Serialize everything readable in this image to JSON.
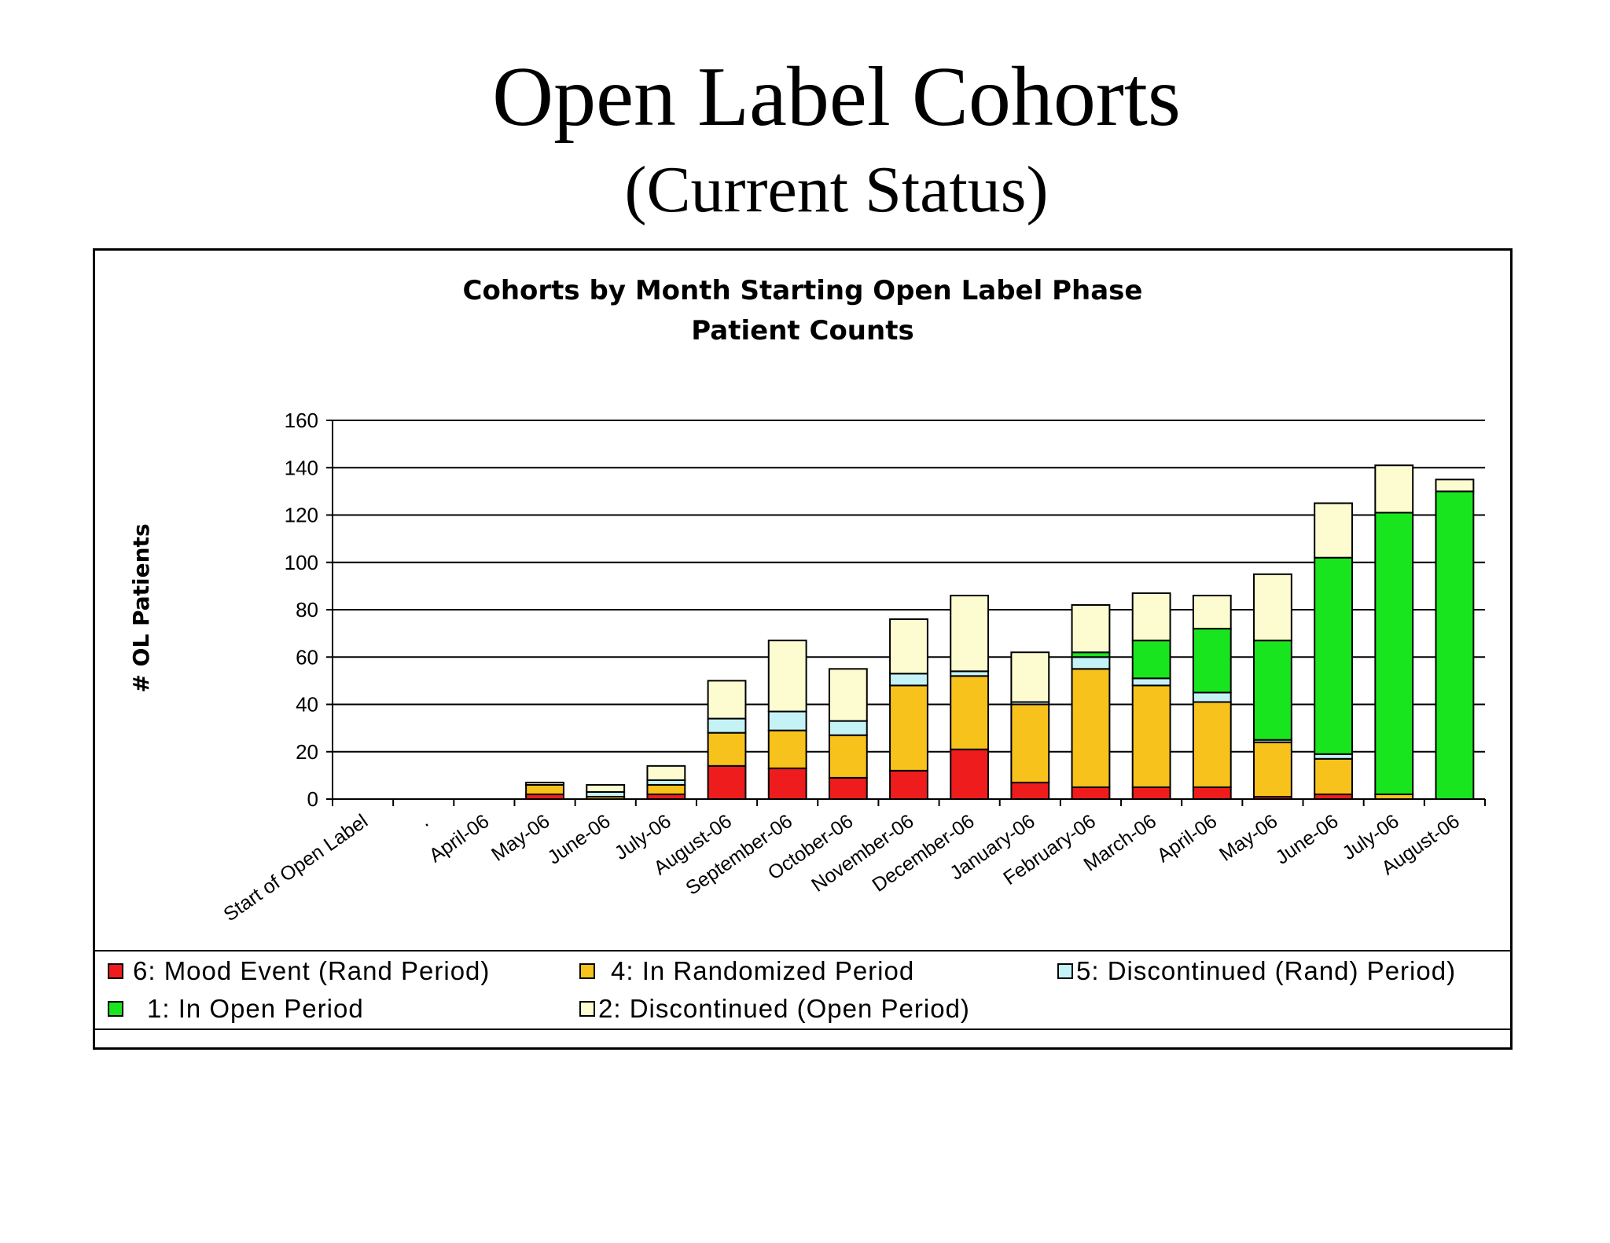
{
  "slide": {
    "title": "Open Label Cohorts",
    "subtitle": "(Current Status)"
  },
  "chart_data": {
    "type": "bar",
    "stacked": true,
    "title": "Cohorts by Month Starting Open Label Phase",
    "subtitle": "Patient Counts",
    "xlabel": "",
    "ylabel": "# OL Patients",
    "ylim": [
      0,
      160
    ],
    "yticks": [
      0,
      20,
      40,
      60,
      80,
      100,
      120,
      140,
      160
    ],
    "grid": true,
    "legend_position": "bottom",
    "categories": [
      "Start of Open Label",
      ".",
      "April-06",
      "May-06",
      "June-06",
      "July-06",
      "August-06",
      "September-06",
      "October-06",
      "November-06",
      "December-06",
      "January-06",
      "February-06",
      "March-06",
      "April-06",
      "May-06",
      "June-06",
      "July-06",
      "August-06"
    ],
    "series": [
      {
        "name": "6: Mood Event (Rand Period)",
        "color": "#ee1c1c",
        "values": [
          0,
          0,
          0,
          2,
          0,
          2,
          14,
          13,
          9,
          12,
          21,
          7,
          5,
          5,
          5,
          1,
          2,
          0,
          0
        ]
      },
      {
        "name": "4: In Randomized Period",
        "color": "#f7c21b",
        "values": [
          0,
          0,
          0,
          4,
          1,
          4,
          14,
          16,
          18,
          36,
          31,
          33,
          50,
          43,
          36,
          23,
          15,
          2,
          0
        ]
      },
      {
        "name": "5: Discontinued (Rand) Period)",
        "color": "#c4f2f7",
        "values": [
          0,
          0,
          0,
          0,
          2,
          2,
          6,
          8,
          6,
          5,
          2,
          1,
          5,
          3,
          4,
          1,
          2,
          0,
          0
        ]
      },
      {
        "name": "1: In Open Period",
        "color": "#19e51e",
        "values": [
          0,
          0,
          0,
          0,
          0,
          0,
          0,
          0,
          0,
          0,
          0,
          0,
          2,
          16,
          27,
          42,
          83,
          119,
          130
        ]
      },
      {
        "name": "2: Discontinued (Open Period)",
        "color": "#fdfbd0",
        "values": [
          0,
          0,
          0,
          1,
          3,
          6,
          16,
          30,
          22,
          23,
          32,
          21,
          20,
          20,
          14,
          28,
          23,
          20,
          5
        ]
      }
    ],
    "legend_entries": [
      {
        "label": "6: Mood Event (Rand Period)",
        "color": "#ee1c1c"
      },
      {
        "label": "4: In Randomized Period",
        "color": "#f7c21b"
      },
      {
        "label": "5: Discontinued (Rand) Period)",
        "color": "#c4f2f7"
      },
      {
        "label": "1: In Open Period",
        "color": "#19e51e"
      },
      {
        "label": "2: Discontinued (Open Period)",
        "color": "#fdfbd0"
      }
    ]
  }
}
